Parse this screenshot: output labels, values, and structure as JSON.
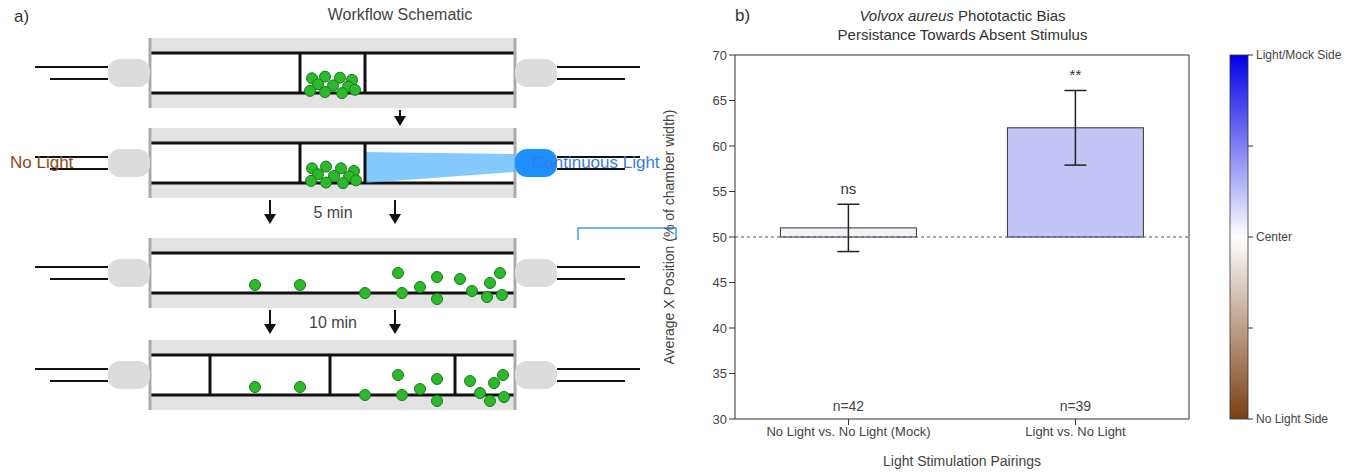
{
  "chart_data": {
    "type": "bar",
    "panel_label": "b)",
    "title": "Volvox aureus Phototactic Bias Persistance Towards Absent Stimulus",
    "categories": [
      "No Light vs. No Light (Mock)",
      "Light vs. No Light"
    ],
    "values": [
      51,
      62
    ],
    "errors": [
      2.6,
      4.1
    ],
    "colors": [
      "#f4f2f7",
      "#c4c4f7"
    ],
    "baseline": 50,
    "significance": [
      "ns",
      "**"
    ],
    "n_labels": [
      "n=42",
      "n=39"
    ],
    "xlabel": "Light Stimulation Pairings",
    "ylabel": "Average X Position (% of chamber width)",
    "ylim": [
      30,
      70
    ],
    "yticks": [
      30,
      35,
      40,
      45,
      50,
      55,
      60,
      65,
      70
    ],
    "grid": false,
    "colorbar": {
      "range": [
        30,
        70
      ],
      "ticks": [
        30,
        40,
        50,
        60,
        70
      ],
      "labels": [
        {
          "value": 70,
          "label": "Light/Mock Side"
        },
        {
          "value": 50,
          "label": "Center"
        },
        {
          "value": 30,
          "label": "No Light Side"
        }
      ],
      "colors": [
        "#7a3f12",
        "#ffffff",
        "#0000e6"
      ]
    }
  },
  "diagram": {
    "panel_label": "a)",
    "title": "Workflow Schematic",
    "left_label": "No Light",
    "right_label": "Continuous Light",
    "steps": [
      "5 min",
      "10 min"
    ]
  }
}
